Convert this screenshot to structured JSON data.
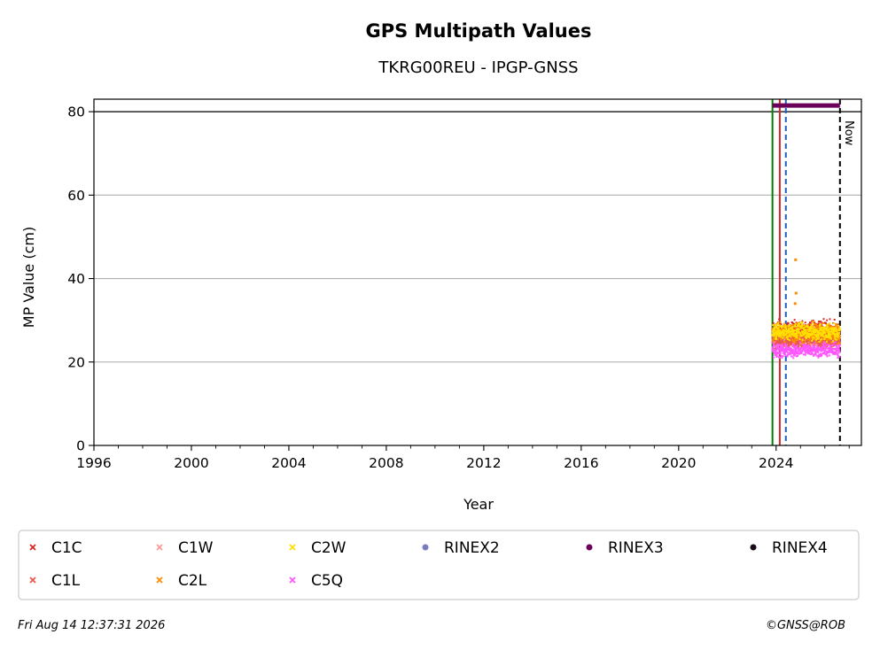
{
  "chart_data": {
    "type": "scatter",
    "title": "GPS Multipath Values",
    "subtitle": "TKRG00REU - IPGP-GNSS",
    "xlabel": "Year",
    "ylabel": "MP Value (cm)",
    "xlim": [
      1996,
      2027.5
    ],
    "ylim": [
      0,
      83
    ],
    "x_ticks": [
      1996,
      2000,
      2004,
      2008,
      2012,
      2016,
      2020,
      2024
    ],
    "y_ticks": [
      0,
      20,
      40,
      60,
      80
    ],
    "grid": "horizontal",
    "limit_line": 80,
    "vertical_lines": [
      {
        "x": 2023.85,
        "color": "#008000",
        "style": "solid"
      },
      {
        "x": 2024.15,
        "color": "#d62728",
        "style": "solid"
      },
      {
        "x": 2024.4,
        "color": "#1f5fbf",
        "style": "dashed"
      },
      {
        "x": 2026.62,
        "color": "#000000",
        "style": "dashed",
        "label": "Now"
      }
    ],
    "data_span": [
      2023.85,
      2026.62
    ],
    "rinex_bar": {
      "series": "RINEX3",
      "y": 81.5,
      "x": [
        2023.85,
        2026.62
      ]
    },
    "series": [
      {
        "name": "C1C",
        "color": "#d62728",
        "marker": "x",
        "mean": 27.5,
        "spread": 2.0
      },
      {
        "name": "C1L",
        "color": "#e8574f",
        "marker": "x",
        "mean": 25.0,
        "spread": 1.5
      },
      {
        "name": "C1W",
        "color": "#ff9a9a",
        "marker": "x",
        "mean": 25.5,
        "spread": 2.0
      },
      {
        "name": "C2L",
        "color": "#ff8c00",
        "marker": "x",
        "mean": 27.0,
        "spread": 2.0,
        "outliers": [
          [
            2024.8,
            44.5
          ],
          [
            2024.82,
            36.5
          ],
          [
            2024.78,
            34.0
          ]
        ]
      },
      {
        "name": "C2W",
        "color": "#ffe000",
        "marker": "x",
        "mean": 27.2,
        "spread": 1.7
      },
      {
        "name": "C5Q",
        "color": "#ff55ff",
        "marker": "x",
        "mean": 22.8,
        "spread": 1.4
      },
      {
        "name": "RINEX2",
        "color": "#7b7bbf",
        "marker": "o"
      },
      {
        "name": "RINEX3",
        "color": "#6a005a",
        "marker": "o"
      },
      {
        "name": "RINEX4",
        "color": "#1a0a1a",
        "marker": "o"
      }
    ],
    "legend_placement": "bottom"
  },
  "legend": {
    "items": [
      {
        "label": "C1C",
        "color": "#d62728",
        "marker": "x"
      },
      {
        "label": "C1W",
        "color": "#ff9a9a",
        "marker": "x"
      },
      {
        "label": "C2W",
        "color": "#ffe000",
        "marker": "x"
      },
      {
        "label": "RINEX2",
        "color": "#7b7bbf",
        "marker": "o"
      },
      {
        "label": "RINEX3",
        "color": "#6a005a",
        "marker": "o"
      },
      {
        "label": "RINEX4",
        "color": "#1a0a1a",
        "marker": "o"
      },
      {
        "label": "C1L",
        "color": "#e8574f",
        "marker": "x"
      },
      {
        "label": "C2L",
        "color": "#ff8c00",
        "marker": "x"
      },
      {
        "label": "C5Q",
        "color": "#ff55ff",
        "marker": "x"
      }
    ]
  },
  "footer": {
    "timestamp": "Fri Aug 14 12:37:31 2026",
    "copyright": "©GNSS@ROB"
  },
  "now_label": "Now"
}
